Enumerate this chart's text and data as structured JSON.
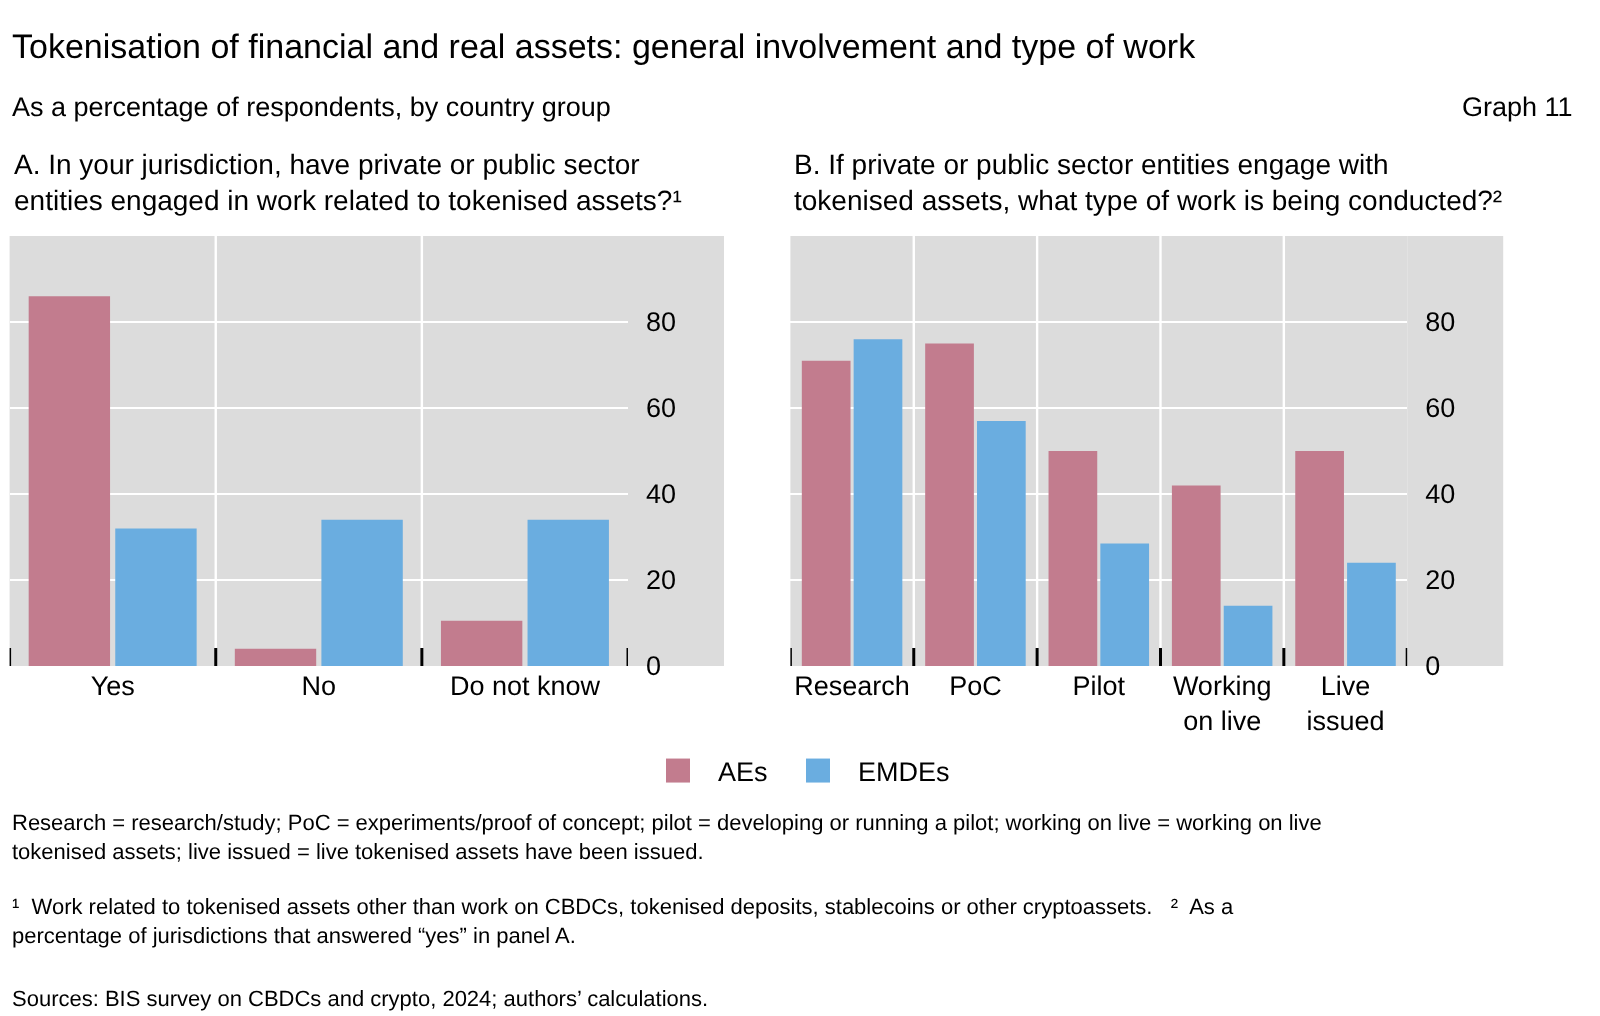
{
  "chart_data": [
    {
      "type": "bar",
      "title": "A. In your jurisdiction, have private or public sector entities engaged in work related to tokenised assets?¹",
      "annotations": [
        "Tokenisation of financial and real assets: general involvement and type of work",
        "As a percentage of respondents, by country group",
        "Graph 11"
      ],
      "categories": [
        "Yes",
        "No",
        "Do not know"
      ],
      "series": [
        {
          "name": "AEs",
          "color": "#c27c8e",
          "values": [
            86,
            4,
            10.5
          ]
        },
        {
          "name": "EMDEs",
          "color": "#6aade0",
          "values": [
            32,
            34,
            34
          ]
        }
      ],
      "ylim": [
        0,
        100
      ],
      "yticks": [
        0,
        20,
        40,
        60,
        80
      ],
      "grid": true,
      "legend": "bottom"
    },
    {
      "type": "bar",
      "title": "B. If private or public sector entities engage with tokenised assets, what type of work is being conducted?²",
      "annotations": [
        "Research = research/study; PoC = experiments/proof of concept; pilot = developing or running a pilot; working on live = working on live tokenised assets; live issued = live tokenised assets have been issued.",
        "¹  Work related to tokenised assets other than work on CBDCs, tokenised deposits, stablecoins or other cryptoassets.   ²  As a percentage of jurisdictions that answered “yes” in panel A.",
        "Sources: BIS survey on CBDCs and crypto, 2024; authors’ calculations."
      ],
      "categories": [
        "Research",
        "PoC",
        "Pilot",
        "Working on live",
        "Live issued"
      ],
      "series": [
        {
          "name": "AEs",
          "color": "#c27c8e",
          "values": [
            71,
            75,
            50,
            42,
            50
          ]
        },
        {
          "name": "EMDEs",
          "color": "#6aade0",
          "values": [
            76,
            57,
            28.5,
            14,
            24
          ]
        }
      ],
      "ylim": [
        0,
        100
      ],
      "yticks": [
        0,
        20,
        40,
        60,
        80
      ],
      "grid": true,
      "legend": "bottom"
    }
  ]
}
